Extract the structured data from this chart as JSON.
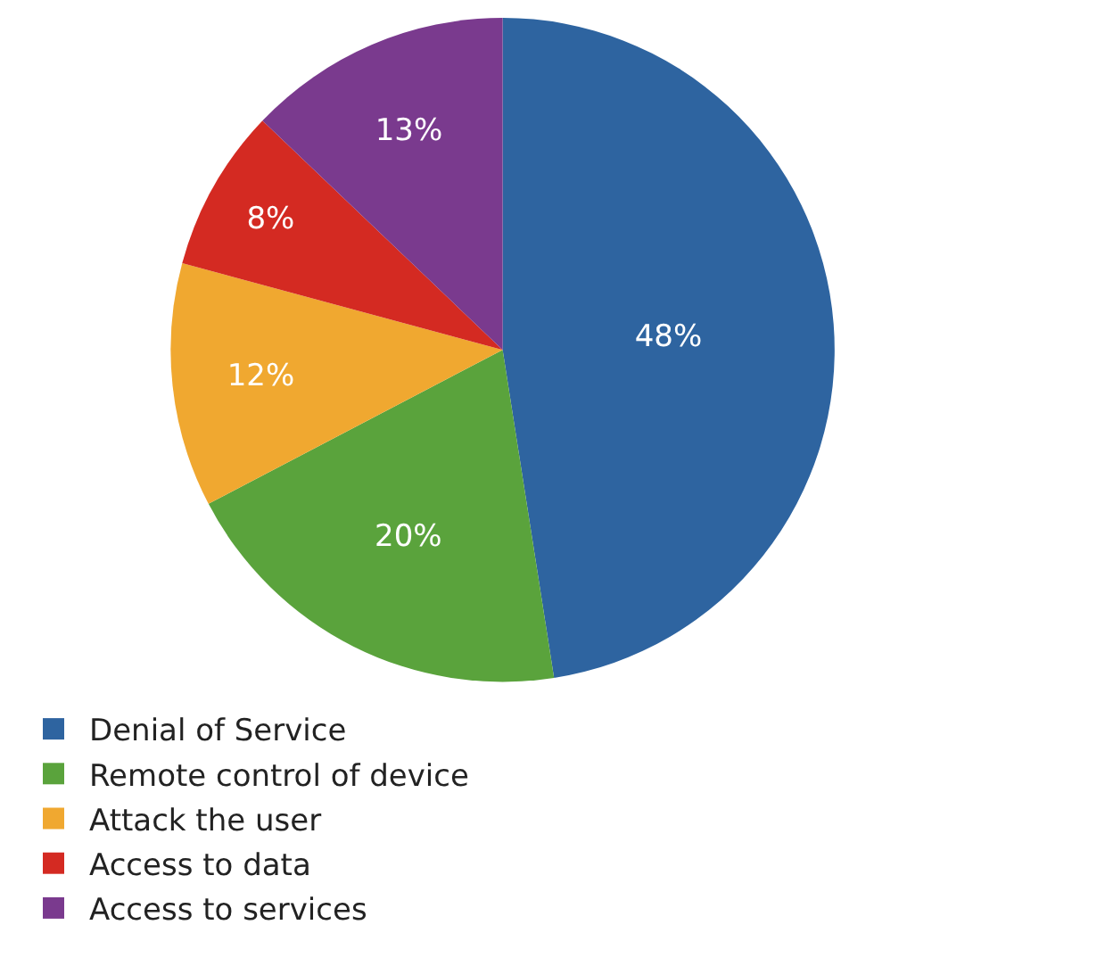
{
  "chart_data": {
    "type": "pie",
    "categories": [
      "Denial of Service",
      "Remote control of device",
      "Attack the user",
      "Access to data",
      "Access to services"
    ],
    "values": [
      48,
      20,
      12,
      8,
      13
    ],
    "value_labels": [
      "48%",
      "20%",
      "12%",
      "8%",
      "13%"
    ],
    "colors": [
      "#2e64a0",
      "#5aa33c",
      "#f0a830",
      "#d42a22",
      "#7a3a8e"
    ],
    "legend": "bottom"
  }
}
